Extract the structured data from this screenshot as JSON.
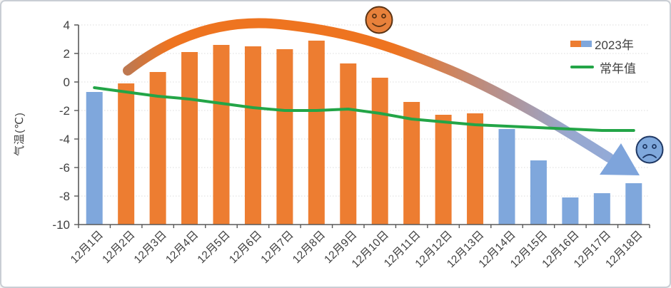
{
  "figure_title": "",
  "chart_data": {
    "type": "bar",
    "categories": [
      "12月1日",
      "12月2日",
      "12月3日",
      "12月4日",
      "12月5日",
      "12月6日",
      "12月7日",
      "12月8日",
      "12月9日",
      "12月10日",
      "12月11日",
      "12月12日",
      "12月13日",
      "12月14日",
      "12月15日",
      "12月16日",
      "12月17日",
      "12月18日"
    ],
    "series": [
      {
        "name": "2023年",
        "type": "bar",
        "values": [
          -0.7,
          -0.1,
          0.7,
          2.1,
          2.6,
          2.5,
          2.3,
          2.9,
          1.3,
          0.3,
          -1.4,
          -2.3,
          -2.2,
          -3.3,
          -5.5,
          -8.1,
          -7.8,
          -7.1
        ],
        "point_colors": [
          "blue",
          "orange",
          "orange",
          "orange",
          "orange",
          "orange",
          "orange",
          "orange",
          "orange",
          "orange",
          "orange",
          "orange",
          "orange",
          "blue",
          "blue",
          "blue",
          "blue",
          "blue"
        ]
      },
      {
        "name": "常年值",
        "type": "line",
        "values": [
          -0.4,
          -0.7,
          -1.0,
          -1.2,
          -1.5,
          -1.8,
          -2.0,
          -2.0,
          -1.9,
          -2.2,
          -2.6,
          -2.8,
          -3.0,
          -3.1,
          -3.2,
          -3.3,
          -3.4,
          -3.4
        ]
      }
    ],
    "ylabel": "气温(℃)",
    "xlabel": "",
    "ylim": [
      -10,
      4
    ],
    "yticks": [
      4,
      2,
      0,
      -2,
      -4,
      -6,
      -8,
      -10
    ],
    "ytick_labels": [
      "4",
      "2",
      "0",
      "-2",
      "-4",
      "-6",
      "-8",
      "-10"
    ],
    "grid": "horizontal-dotted",
    "legend_position": "top-right",
    "x_label_rotation": -45,
    "bars_base": -10,
    "annotations": [
      {
        "name": "trend-arrow",
        "desc": "thick curved arrow rising over warm days then falling to cold days, orange fading into blue, blue arrowhead pointing down-right"
      },
      {
        "name": "smiley-face-icon",
        "desc": "orange smiling face above the warm peak"
      },
      {
        "name": "sad-face-icon",
        "desc": "blue sad face at the cold end"
      }
    ]
  },
  "legend": {
    "items": [
      {
        "label": "2023年",
        "swatch": "orange+blue bar"
      },
      {
        "label": "常年值",
        "swatch": "green line"
      }
    ]
  },
  "colors": {
    "bar_orange": "#ED7D31",
    "bar_blue": "#7FA7DC",
    "line_green": "#23A547",
    "arrow_start_muted": "#BE7850",
    "arrow_orange": "#EE7420",
    "arrow_mid_mauve": "#C08A78",
    "arrow_mid_gray": "#98A7CE",
    "arrow_blue": "#8FACDD",
    "arrowhead_blue": "#7EA4DB",
    "axis": "#595959",
    "gridline": "#DCDCDC",
    "text": "#404040",
    "smiley_fill": "#E8813B",
    "smiley_stroke": "#5B3313",
    "sad_fill": "#7FA8DC",
    "sad_stroke": "#1F3864",
    "figure_border": "#C9CED4",
    "background": "#FFFFFF"
  }
}
